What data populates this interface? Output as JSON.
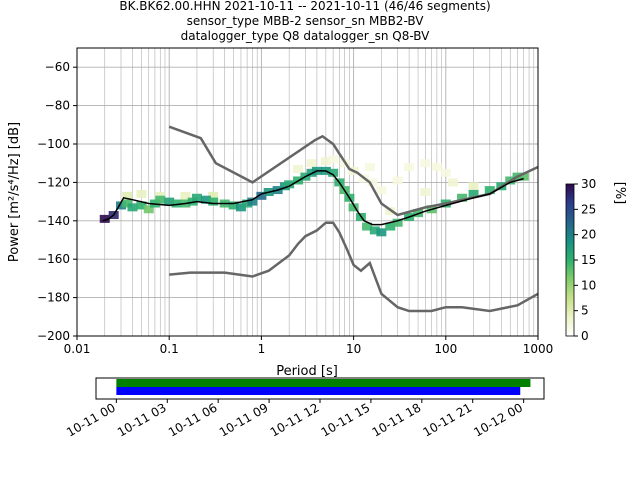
{
  "title_lines": [
    "BK.BK62.00.HHN   2021-10-11 -- 2021-10-11  (46/46 segments)",
    "sensor_type MBB-2 sensor_sn MBB2-BV",
    "datalogger_type Q8 datalogger_sn Q8-BV"
  ],
  "chart_data": {
    "type": "heatmap",
    "xlabel": "Period [s]",
    "ylabel": "Power [m²/s⁴/Hz] [dB]",
    "xscale": "log",
    "xlim": [
      0.01,
      1000
    ],
    "ylim": [
      -200,
      -50
    ],
    "xticks": [
      0.01,
      0.1,
      1,
      10,
      100,
      1000
    ],
    "xtick_labels": [
      "0.01",
      "0.1",
      "1",
      "10",
      "100",
      "1000"
    ],
    "yticks": [
      -200,
      -180,
      -160,
      -140,
      -120,
      -100,
      -80,
      -60
    ],
    "ytick_labels": [
      "−200",
      "−180",
      "−160",
      "−140",
      "−120",
      "−100",
      "−80",
      "−60"
    ],
    "grid": true,
    "nlnm": [
      [
        0.1,
        -168
      ],
      [
        0.17,
        -167
      ],
      [
        0.4,
        -167
      ],
      [
        0.8,
        -169
      ],
      [
        1.2,
        -166
      ],
      [
        2.0,
        -158
      ],
      [
        2.5,
        -152
      ],
      [
        3.0,
        -148
      ],
      [
        4.0,
        -145
      ],
      [
        5.0,
        -141
      ],
      [
        6.0,
        -141
      ],
      [
        7.0,
        -146
      ],
      [
        8.5,
        -155
      ],
      [
        10,
        -163
      ],
      [
        12,
        -166
      ],
      [
        15,
        -162
      ],
      [
        20,
        -178
      ],
      [
        30,
        -185
      ],
      [
        40,
        -187
      ],
      [
        70,
        -187
      ],
      [
        100,
        -185
      ],
      [
        150,
        -185
      ],
      [
        300,
        -187
      ],
      [
        600,
        -184
      ],
      [
        1000,
        -178
      ]
    ],
    "nhnm": [
      [
        0.1,
        -91
      ],
      [
        0.22,
        -97
      ],
      [
        0.32,
        -110
      ],
      [
        0.8,
        -120
      ],
      [
        3.8,
        -98
      ],
      [
        4.6,
        -96
      ],
      [
        6.0,
        -100
      ],
      [
        7.0,
        -105
      ],
      [
        9.0,
        -113
      ],
      [
        11,
        -115
      ],
      [
        15,
        -120
      ],
      [
        20,
        -131
      ],
      [
        30,
        -137
      ],
      [
        60,
        -133
      ],
      [
        100,
        -131
      ],
      [
        300,
        -126
      ],
      [
        600,
        -117
      ],
      [
        1000,
        -112
      ]
    ],
    "mode": [
      [
        0.019,
        -140
      ],
      [
        0.022,
        -139
      ],
      [
        0.025,
        -137
      ],
      [
        0.028,
        -133
      ],
      [
        0.032,
        -128
      ],
      [
        0.04,
        -129
      ],
      [
        0.06,
        -131
      ],
      [
        0.1,
        -132
      ],
      [
        0.15,
        -131
      ],
      [
        0.2,
        -130
      ],
      [
        0.3,
        -131
      ],
      [
        0.5,
        -131
      ],
      [
        0.8,
        -129
      ],
      [
        1.0,
        -126
      ],
      [
        1.5,
        -124
      ],
      [
        2.0,
        -122
      ],
      [
        3.0,
        -117
      ],
      [
        4.0,
        -114
      ],
      [
        5.0,
        -114
      ],
      [
        6.0,
        -116
      ],
      [
        7.0,
        -120
      ],
      [
        9.0,
        -128
      ],
      [
        11,
        -135
      ],
      [
        13,
        -140
      ],
      [
        16,
        -142
      ],
      [
        20,
        -142
      ],
      [
        30,
        -140
      ],
      [
        40,
        -138
      ],
      [
        60,
        -135
      ],
      [
        100,
        -132
      ],
      [
        200,
        -128
      ],
      [
        300,
        -126
      ],
      [
        500,
        -120
      ],
      [
        700,
        -118
      ]
    ],
    "heatmap_cells": [
      {
        "x": 0.02,
        "y": -139,
        "p": 30
      },
      {
        "x": 0.025,
        "y": -137,
        "p": 28
      },
      {
        "x": 0.03,
        "y": -132,
        "p": 20
      },
      {
        "x": 0.035,
        "y": -131,
        "p": 14
      },
      {
        "x": 0.04,
        "y": -133,
        "p": 16
      },
      {
        "x": 0.05,
        "y": -132,
        "p": 15
      },
      {
        "x": 0.06,
        "y": -134,
        "p": 12
      },
      {
        "x": 0.07,
        "y": -131,
        "p": 15
      },
      {
        "x": 0.08,
        "y": -129,
        "p": 14
      },
      {
        "x": 0.1,
        "y": -130,
        "p": 17
      },
      {
        "x": 0.12,
        "y": -131,
        "p": 15
      },
      {
        "x": 0.15,
        "y": -131,
        "p": 14
      },
      {
        "x": 0.18,
        "y": -130,
        "p": 15
      },
      {
        "x": 0.2,
        "y": -128,
        "p": 16
      },
      {
        "x": 0.25,
        "y": -129,
        "p": 18
      },
      {
        "x": 0.3,
        "y": -130,
        "p": 15
      },
      {
        "x": 0.4,
        "y": -131,
        "p": 14
      },
      {
        "x": 0.5,
        "y": -132,
        "p": 15
      },
      {
        "x": 0.6,
        "y": -133,
        "p": 18
      },
      {
        "x": 0.7,
        "y": -131,
        "p": 16
      },
      {
        "x": 0.8,
        "y": -130,
        "p": 20
      },
      {
        "x": 1.0,
        "y": -127,
        "p": 22
      },
      {
        "x": 1.2,
        "y": -125,
        "p": 18
      },
      {
        "x": 1.5,
        "y": -124,
        "p": 20
      },
      {
        "x": 1.8,
        "y": -122,
        "p": 18
      },
      {
        "x": 2.0,
        "y": -121,
        "p": 16
      },
      {
        "x": 2.5,
        "y": -119,
        "p": 15
      },
      {
        "x": 3.0,
        "y": -117,
        "p": 16
      },
      {
        "x": 3.5,
        "y": -115,
        "p": 17
      },
      {
        "x": 4.0,
        "y": -114,
        "p": 18
      },
      {
        "x": 5.0,
        "y": -114,
        "p": 18
      },
      {
        "x": 6.0,
        "y": -115,
        "p": 16
      },
      {
        "x": 7.0,
        "y": -120,
        "p": 15
      },
      {
        "x": 8.0,
        "y": -124,
        "p": 14
      },
      {
        "x": 9.0,
        "y": -128,
        "p": 15
      },
      {
        "x": 10,
        "y": -133,
        "p": 14
      },
      {
        "x": 12,
        "y": -138,
        "p": 15
      },
      {
        "x": 14,
        "y": -143,
        "p": 14
      },
      {
        "x": 17,
        "y": -145,
        "p": 16
      },
      {
        "x": 20,
        "y": -146,
        "p": 18
      },
      {
        "x": 25,
        "y": -143,
        "p": 15
      },
      {
        "x": 30,
        "y": -141,
        "p": 14
      },
      {
        "x": 40,
        "y": -138,
        "p": 15
      },
      {
        "x": 50,
        "y": -136,
        "p": 14
      },
      {
        "x": 70,
        "y": -134,
        "p": 13
      },
      {
        "x": 100,
        "y": -131,
        "p": 15
      },
      {
        "x": 150,
        "y": -128,
        "p": 14
      },
      {
        "x": 200,
        "y": -126,
        "p": 16
      },
      {
        "x": 300,
        "y": -124,
        "p": 15
      },
      {
        "x": 400,
        "y": -122,
        "p": 16
      },
      {
        "x": 500,
        "y": -119,
        "p": 14
      },
      {
        "x": 600,
        "y": -117,
        "p": 14
      },
      {
        "x": 700,
        "y": -117,
        "p": 13
      }
    ],
    "spread_cells": [
      {
        "x": 0.035,
        "y": -127,
        "p": 5
      },
      {
        "x": 0.05,
        "y": -126,
        "p": 4
      },
      {
        "x": 0.08,
        "y": -127,
        "p": 4
      },
      {
        "x": 0.15,
        "y": -127,
        "p": 4
      },
      {
        "x": 0.3,
        "y": -127,
        "p": 5
      },
      {
        "x": 2.5,
        "y": -113,
        "p": 3
      },
      {
        "x": 3.5,
        "y": -110,
        "p": 3
      },
      {
        "x": 5.0,
        "y": -109,
        "p": 3
      },
      {
        "x": 6.0,
        "y": -108,
        "p": 2
      },
      {
        "x": 8.0,
        "y": -110,
        "p": 2
      },
      {
        "x": 10,
        "y": -114,
        "p": 3
      },
      {
        "x": 13,
        "y": -118,
        "p": 2
      },
      {
        "x": 16,
        "y": -120,
        "p": 2
      },
      {
        "x": 20,
        "y": -124,
        "p": 2
      },
      {
        "x": 30,
        "y": -119,
        "p": 2
      },
      {
        "x": 40,
        "y": -112,
        "p": 2
      },
      {
        "x": 60,
        "y": -110,
        "p": 2
      },
      {
        "x": 80,
        "y": -112,
        "p": 2
      },
      {
        "x": 120,
        "y": -120,
        "p": 3
      },
      {
        "x": 200,
        "y": -122,
        "p": 4
      },
      {
        "x": 25,
        "y": -135,
        "p": 3
      },
      {
        "x": 60,
        "y": -125,
        "p": 3
      },
      {
        "x": 15,
        "y": -112,
        "p": 2
      },
      {
        "x": 100,
        "y": -115,
        "p": 2
      }
    ]
  },
  "colorbar": {
    "label": "[%]",
    "range": [
      0,
      30
    ],
    "ticks": [
      0,
      5,
      10,
      15,
      20,
      25,
      30
    ],
    "tick_labels": [
      "0",
      "5",
      "10",
      "15",
      "20",
      "25",
      "30"
    ]
  },
  "timeline": {
    "tick_labels": [
      "10-11 00",
      "10-11 03",
      "10-11 06",
      "10-11 09",
      "10-11 12",
      "10-11 15",
      "10-11 18",
      "10-11 21",
      "10-12 00"
    ],
    "bars": [
      {
        "color": "#008000",
        "start_hour": 0,
        "end_hour": 24.4
      },
      {
        "color": "#0000ff",
        "start_hour": 0,
        "end_hour": 23.8
      }
    ],
    "range_hours": [
      -1.2,
      25.2
    ]
  }
}
